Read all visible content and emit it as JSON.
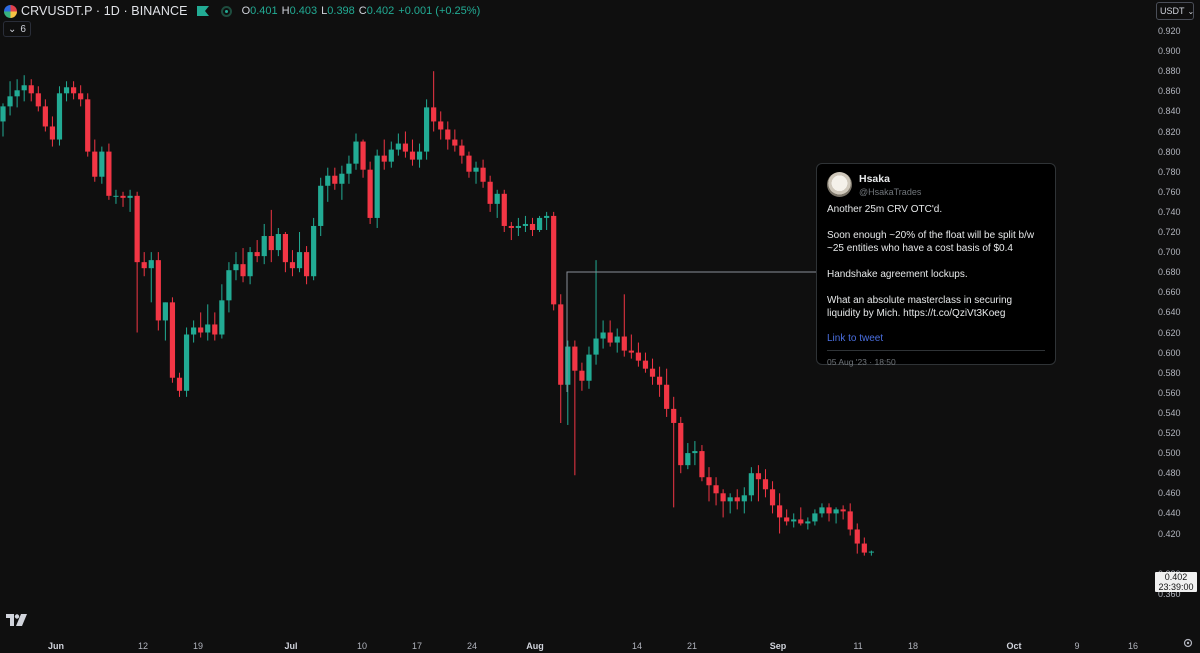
{
  "header": {
    "symbol": "CRVUSDT.P · 1D · BINANCE",
    "ohlc": [
      {
        "k": "O",
        "v": "0.401"
      },
      {
        "k": "H",
        "v": "0.403"
      },
      {
        "k": "L",
        "v": "0.398"
      },
      {
        "k": "C",
        "v": "0.402"
      },
      {
        "k": "",
        "v": "+0.001 (+0.25%)"
      }
    ],
    "indicator_count": "6",
    "currency": "USDT"
  },
  "price_axis": [
    "0.920",
    "0.900",
    "0.880",
    "0.860",
    "0.840",
    "0.820",
    "0.800",
    "0.780",
    "0.760",
    "0.740",
    "0.720",
    "0.700",
    "0.680",
    "0.660",
    "0.640",
    "0.620",
    "0.600",
    "0.580",
    "0.560",
    "0.540",
    "0.520",
    "0.500",
    "0.480",
    "0.460",
    "0.440",
    "0.420",
    "0.380",
    "0.360"
  ],
  "last_price": {
    "value": "0.402",
    "countdown": "23:39:00"
  },
  "date_axis": [
    {
      "label": "Jun",
      "bold": true
    },
    {
      "label": "12",
      "bold": false
    },
    {
      "label": "19",
      "bold": false
    },
    {
      "label": "Jul",
      "bold": true
    },
    {
      "label": "10",
      "bold": false
    },
    {
      "label": "17",
      "bold": false
    },
    {
      "label": "24",
      "bold": false
    },
    {
      "label": "Aug",
      "bold": true
    },
    {
      "label": "14",
      "bold": false
    },
    {
      "label": "21",
      "bold": false
    },
    {
      "label": "Sep",
      "bold": true
    },
    {
      "label": "11",
      "bold": false
    },
    {
      "label": "18",
      "bold": false
    },
    {
      "label": "Oct",
      "bold": true
    },
    {
      "label": "9",
      "bold": false
    },
    {
      "label": "16",
      "bold": false
    }
  ],
  "colors": {
    "up": "#22ab94",
    "down": "#f23645",
    "background": "#0f0f0f",
    "link": "#4a6fe0"
  },
  "tweet": {
    "name": "Hsaka",
    "handle": "@HsakaTrades",
    "paragraphs": [
      "Another 25m CRV OTC'd.",
      "Soon enough ~20% of the float will be split b/w ~25 entities who have a cost basis of $0.4",
      "Handshake agreement lockups.",
      "What an absolute masterclass in securing liquidity by Mich. https://t.co/QziVt3Koeg"
    ],
    "link_label": "Link to tweet",
    "date": "05 Aug '23 · 18:50"
  },
  "icons": {
    "chart_logo": "tradingview-logo-icon",
    "settings": "gear-icon"
  },
  "chart_data": {
    "type": "candlestick",
    "x_unit": "day index from 2023-05-30",
    "y_range": [
      0.355,
      0.925
    ],
    "candles": [
      [
        0,
        0.83,
        0.848,
        0.815,
        0.845
      ],
      [
        1,
        0.845,
        0.87,
        0.836,
        0.855
      ],
      [
        2,
        0.855,
        0.872,
        0.844,
        0.861
      ],
      [
        3,
        0.861,
        0.876,
        0.85,
        0.866
      ],
      [
        4,
        0.866,
        0.872,
        0.85,
        0.858
      ],
      [
        5,
        0.858,
        0.865,
        0.84,
        0.845
      ],
      [
        6,
        0.845,
        0.852,
        0.82,
        0.825
      ],
      [
        7,
        0.825,
        0.835,
        0.805,
        0.812
      ],
      [
        8,
        0.812,
        0.865,
        0.806,
        0.858
      ],
      [
        9,
        0.858,
        0.87,
        0.85,
        0.864
      ],
      [
        10,
        0.864,
        0.87,
        0.852,
        0.858
      ],
      [
        11,
        0.858,
        0.866,
        0.845,
        0.852
      ],
      [
        12,
        0.852,
        0.858,
        0.795,
        0.8
      ],
      [
        13,
        0.8,
        0.812,
        0.77,
        0.775
      ],
      [
        14,
        0.775,
        0.805,
        0.768,
        0.8
      ],
      [
        15,
        0.8,
        0.808,
        0.752,
        0.756
      ],
      [
        16,
        0.756,
        0.762,
        0.748,
        0.756
      ],
      [
        17,
        0.756,
        0.76,
        0.745,
        0.754
      ],
      [
        18,
        0.754,
        0.762,
        0.74,
        0.756
      ],
      [
        19,
        0.756,
        0.76,
        0.62,
        0.69
      ],
      [
        20,
        0.69,
        0.7,
        0.676,
        0.684
      ],
      [
        21,
        0.684,
        0.7,
        0.65,
        0.692
      ],
      [
        22,
        0.692,
        0.7,
        0.622,
        0.632
      ],
      [
        23,
        0.632,
        0.65,
        0.612,
        0.65
      ],
      [
        24,
        0.65,
        0.655,
        0.57,
        0.575
      ],
      [
        25,
        0.575,
        0.58,
        0.556,
        0.562
      ],
      [
        26,
        0.562,
        0.625,
        0.556,
        0.618
      ],
      [
        27,
        0.618,
        0.632,
        0.61,
        0.625
      ],
      [
        28,
        0.625,
        0.64,
        0.615,
        0.62
      ],
      [
        29,
        0.62,
        0.648,
        0.612,
        0.628
      ],
      [
        30,
        0.628,
        0.64,
        0.612,
        0.618
      ],
      [
        31,
        0.618,
        0.668,
        0.614,
        0.652
      ],
      [
        32,
        0.652,
        0.69,
        0.64,
        0.682
      ],
      [
        33,
        0.682,
        0.7,
        0.672,
        0.688
      ],
      [
        34,
        0.688,
        0.704,
        0.67,
        0.676
      ],
      [
        35,
        0.676,
        0.705,
        0.668,
        0.7
      ],
      [
        36,
        0.7,
        0.712,
        0.69,
        0.696
      ],
      [
        37,
        0.696,
        0.728,
        0.688,
        0.716
      ],
      [
        38,
        0.716,
        0.742,
        0.69,
        0.702
      ],
      [
        39,
        0.702,
        0.724,
        0.696,
        0.718
      ],
      [
        40,
        0.718,
        0.72,
        0.68,
        0.69
      ],
      [
        41,
        0.69,
        0.702,
        0.676,
        0.684
      ],
      [
        42,
        0.684,
        0.72,
        0.68,
        0.7
      ],
      [
        43,
        0.7,
        0.706,
        0.668,
        0.676
      ],
      [
        44,
        0.676,
        0.734,
        0.672,
        0.726
      ],
      [
        45,
        0.726,
        0.774,
        0.716,
        0.766
      ],
      [
        46,
        0.766,
        0.784,
        0.75,
        0.776
      ],
      [
        47,
        0.776,
        0.784,
        0.762,
        0.768
      ],
      [
        48,
        0.768,
        0.786,
        0.752,
        0.778
      ],
      [
        49,
        0.778,
        0.796,
        0.768,
        0.788
      ],
      [
        50,
        0.788,
        0.818,
        0.782,
        0.81
      ],
      [
        51,
        0.81,
        0.812,
        0.774,
        0.782
      ],
      [
        52,
        0.782,
        0.79,
        0.728,
        0.734
      ],
      [
        53,
        0.734,
        0.802,
        0.724,
        0.796
      ],
      [
        54,
        0.796,
        0.812,
        0.782,
        0.79
      ],
      [
        55,
        0.79,
        0.81,
        0.784,
        0.802
      ],
      [
        56,
        0.802,
        0.818,
        0.796,
        0.808
      ],
      [
        57,
        0.808,
        0.82,
        0.794,
        0.8
      ],
      [
        58,
        0.8,
        0.812,
        0.786,
        0.792
      ],
      [
        59,
        0.792,
        0.808,
        0.784,
        0.8
      ],
      [
        60,
        0.8,
        0.852,
        0.792,
        0.844
      ],
      [
        61,
        0.844,
        0.88,
        0.82,
        0.83
      ],
      [
        62,
        0.83,
        0.84,
        0.812,
        0.822
      ],
      [
        63,
        0.822,
        0.83,
        0.802,
        0.812
      ],
      [
        64,
        0.812,
        0.822,
        0.8,
        0.806
      ],
      [
        65,
        0.806,
        0.812,
        0.788,
        0.796
      ],
      [
        66,
        0.796,
        0.8,
        0.774,
        0.78
      ],
      [
        67,
        0.78,
        0.79,
        0.768,
        0.784
      ],
      [
        68,
        0.784,
        0.792,
        0.764,
        0.77
      ],
      [
        69,
        0.77,
        0.776,
        0.74,
        0.748
      ],
      [
        70,
        0.748,
        0.762,
        0.734,
        0.758
      ],
      [
        71,
        0.758,
        0.762,
        0.72,
        0.726
      ],
      [
        72,
        0.726,
        0.73,
        0.712,
        0.724
      ],
      [
        73,
        0.724,
        0.734,
        0.716,
        0.726
      ],
      [
        74,
        0.726,
        0.736,
        0.72,
        0.728
      ],
      [
        75,
        0.728,
        0.734,
        0.716,
        0.722
      ],
      [
        76,
        0.722,
        0.736,
        0.72,
        0.734
      ],
      [
        77,
        0.734,
        0.74,
        0.722,
        0.736
      ],
      [
        78,
        0.736,
        0.74,
        0.642,
        0.648
      ],
      [
        79,
        0.648,
        0.658,
        0.53,
        0.568
      ],
      [
        80,
        0.568,
        0.612,
        0.528,
        0.606
      ],
      [
        81,
        0.606,
        0.612,
        0.478,
        0.582
      ],
      [
        82,
        0.582,
        0.59,
        0.562,
        0.572
      ],
      [
        83,
        0.572,
        0.606,
        0.564,
        0.598
      ],
      [
        84,
        0.598,
        0.692,
        0.588,
        0.614
      ],
      [
        85,
        0.614,
        0.632,
        0.604,
        0.62
      ],
      [
        86,
        0.62,
        0.632,
        0.606,
        0.61
      ],
      [
        87,
        0.61,
        0.624,
        0.6,
        0.616
      ],
      [
        88,
        0.616,
        0.658,
        0.596,
        0.602
      ],
      [
        89,
        0.602,
        0.618,
        0.594,
        0.6
      ],
      [
        90,
        0.6,
        0.61,
        0.586,
        0.592
      ],
      [
        91,
        0.592,
        0.6,
        0.58,
        0.584
      ],
      [
        92,
        0.584,
        0.594,
        0.568,
        0.576
      ],
      [
        93,
        0.576,
        0.586,
        0.556,
        0.568
      ],
      [
        94,
        0.568,
        0.584,
        0.536,
        0.544
      ],
      [
        95,
        0.544,
        0.556,
        0.446,
        0.53
      ],
      [
        96,
        0.53,
        0.536,
        0.48,
        0.488
      ],
      [
        97,
        0.488,
        0.51,
        0.484,
        0.5
      ],
      [
        98,
        0.5,
        0.512,
        0.488,
        0.502
      ],
      [
        99,
        0.502,
        0.508,
        0.472,
        0.476
      ],
      [
        100,
        0.476,
        0.486,
        0.452,
        0.468
      ],
      [
        101,
        0.468,
        0.476,
        0.448,
        0.46
      ],
      [
        102,
        0.46,
        0.464,
        0.436,
        0.452
      ],
      [
        103,
        0.452,
        0.46,
        0.44,
        0.456
      ],
      [
        104,
        0.456,
        0.464,
        0.444,
        0.452
      ],
      [
        105,
        0.452,
        0.466,
        0.44,
        0.458
      ],
      [
        106,
        0.458,
        0.486,
        0.452,
        0.48
      ],
      [
        107,
        0.48,
        0.488,
        0.452,
        0.474
      ],
      [
        108,
        0.474,
        0.484,
        0.456,
        0.464
      ],
      [
        109,
        0.464,
        0.472,
        0.44,
        0.448
      ],
      [
        110,
        0.448,
        0.46,
        0.42,
        0.436
      ],
      [
        111,
        0.436,
        0.444,
        0.428,
        0.432
      ],
      [
        112,
        0.432,
        0.44,
        0.426,
        0.434
      ],
      [
        113,
        0.434,
        0.446,
        0.428,
        0.43
      ],
      [
        114,
        0.43,
        0.436,
        0.424,
        0.432
      ],
      [
        115,
        0.432,
        0.444,
        0.428,
        0.44
      ],
      [
        116,
        0.44,
        0.45,
        0.436,
        0.446
      ],
      [
        117,
        0.446,
        0.45,
        0.432,
        0.44
      ],
      [
        118,
        0.44,
        0.446,
        0.43,
        0.444
      ],
      [
        119,
        0.444,
        0.448,
        0.434,
        0.442
      ],
      [
        120,
        0.442,
        0.45,
        0.418,
        0.424
      ],
      [
        121,
        0.424,
        0.43,
        0.4,
        0.41
      ],
      [
        122,
        0.41,
        0.416,
        0.398,
        0.401
      ],
      [
        123,
        0.401,
        0.403,
        0.398,
        0.402
      ]
    ]
  }
}
